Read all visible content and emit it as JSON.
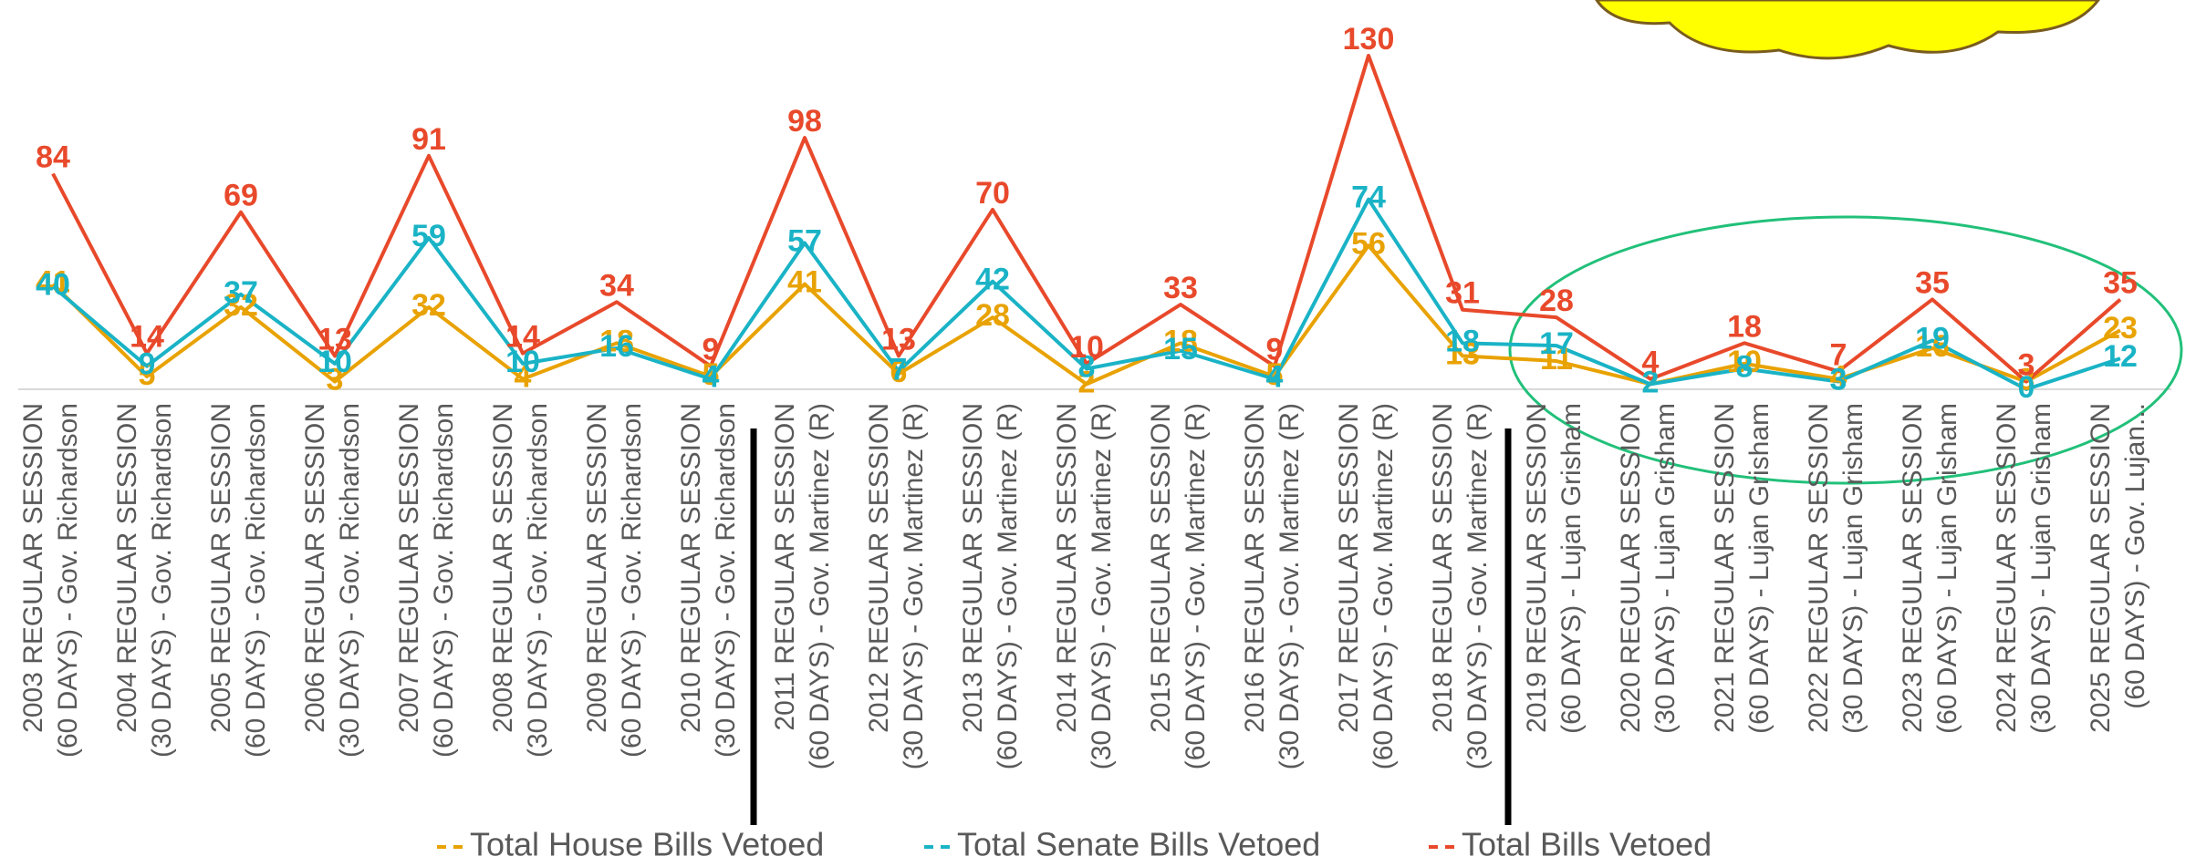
{
  "chart_data": {
    "type": "line",
    "categories": [
      [
        "2003 REGULAR SESSION",
        "(60 DAYS) - Gov. Richardson"
      ],
      [
        "2004 REGULAR SESSION",
        "(30 DAYS) - Gov. Richardson"
      ],
      [
        "2005 REGULAR SESSION",
        "(60 DAYS) - Gov. Richardson"
      ],
      [
        "2006 REGULAR SESSION",
        "(30 DAYS) - Gov. Richardson"
      ],
      [
        "2007 REGULAR SESSION",
        "(60 DAYS) - Gov. Richardson"
      ],
      [
        "2008 REGULAR SESSION",
        "(30 DAYS) - Gov. Richardson"
      ],
      [
        "2009 REGULAR SESSION",
        "(60 DAYS) - Gov. Richardson"
      ],
      [
        "2010 REGULAR SESSION",
        "(30 DAYS) - Gov. Richardson"
      ],
      [
        "2011 REGULAR SESSION",
        "(60 DAYS) - Gov. Martinez (R)"
      ],
      [
        "2012 REGULAR SESSION",
        "(30 DAYS) - Gov. Martinez (R)"
      ],
      [
        "2013 REGULAR SESSION",
        "(60 DAYS) - Gov. Martinez (R)"
      ],
      [
        "2014 REGULAR SESSION",
        "(30 DAYS) - Gov. Martinez (R)"
      ],
      [
        "2015 REGULAR SESSION",
        "(60 DAYS) - Gov. Martinez (R)"
      ],
      [
        "2016 REGULAR SESSION",
        "(30 DAYS) - Gov. Martinez (R)"
      ],
      [
        "2017 REGULAR SESSION",
        "(60 DAYS) - Gov. Martinez (R)"
      ],
      [
        "2018 REGULAR SESSION",
        "(30 DAYS) - Gov. Martinez (R)"
      ],
      [
        "2019 REGULAR SESSION",
        "(60 DAYS) - Lujan Grisham"
      ],
      [
        "2020 REGULAR SESSION",
        "(30 DAYS) - Lujan Grisham"
      ],
      [
        "2021 REGULAR SESSION",
        "(60 DAYS) - Lujan Grisham"
      ],
      [
        "2022 REGULAR SESSION",
        "(30 DAYS) - Lujan Grisham"
      ],
      [
        "2023 REGULAR SESSION",
        "(60 DAYS) - Lujan Grisham"
      ],
      [
        "2024 REGULAR SESSION",
        "(30 DAYS) - Lujan Grisham"
      ],
      [
        "2025 REGULAR SESSION",
        "(60 DAYS) - Gov. Lujan..."
      ]
    ],
    "series": [
      {
        "name": "Total House Bills Vetoed",
        "color": "#e8a202",
        "values": [
          41,
          5,
          32,
          3,
          32,
          4,
          18,
          5,
          41,
          6,
          28,
          2,
          18,
          5,
          56,
          13,
          11,
          2,
          10,
          4,
          16,
          3,
          23
        ]
      },
      {
        "name": "Total Senate Bills Vetoed",
        "color": "#1ab3c6",
        "values": [
          40,
          9,
          37,
          10,
          59,
          10,
          16,
          4,
          57,
          7,
          42,
          8,
          15,
          4,
          74,
          18,
          17,
          2,
          8,
          3,
          19,
          0,
          12
        ]
      },
      {
        "name": "Total Bills Vetoed",
        "color": "#e8492b",
        "values": [
          84,
          14,
          69,
          13,
          91,
          14,
          34,
          9,
          98,
          13,
          70,
          10,
          33,
          9,
          130,
          31,
          28,
          4,
          18,
          7,
          35,
          3,
          35
        ]
      }
    ]
  }
}
